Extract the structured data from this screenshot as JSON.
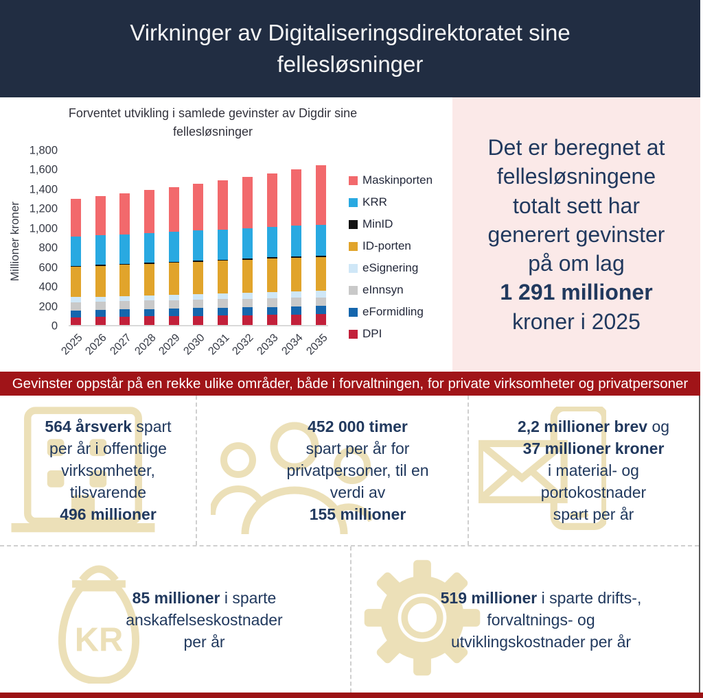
{
  "header": {
    "title": "Virkninger av Digitaliseringsdirektoratet sine\nfellesløsninger"
  },
  "colors": {
    "header_bg": "#212d42",
    "panel_bg": "#fbe9e8",
    "banner_red": "#a01418",
    "bottom_strip_red": "#9b1013",
    "icon_beige": "#ece0b8",
    "text_navy": "#21395e"
  },
  "chart_data": {
    "type": "bar",
    "stacked": true,
    "title": "Forventet utvikling i samlede gevinster av Digdir sine\nfellesløsninger",
    "xlabel": "",
    "ylabel": "Millioner kroner",
    "ylim": [
      0,
      1800
    ],
    "ytick_step": 200,
    "grid": false,
    "legend_position": "right",
    "categories": [
      "2025",
      "2026",
      "2027",
      "2028",
      "2029",
      "2030",
      "2031",
      "2032",
      "2033",
      "2034",
      "2035"
    ],
    "series": [
      {
        "name": "Maskinporten",
        "color": "#f2696c",
        "values": [
          384,
          402,
          422,
          440,
          461,
          481,
          504,
          525,
          550,
          579,
          610
        ]
      },
      {
        "name": "KRR",
        "color": "#29a9e1",
        "values": [
          300,
          302,
          303,
          305,
          306,
          308,
          309,
          311,
          312,
          314,
          316
        ]
      },
      {
        "name": "MinID",
        "color": "#111111",
        "values": [
          12,
          12,
          12,
          13,
          13,
          13,
          13,
          14,
          14,
          14,
          14
        ]
      },
      {
        "name": "ID-porten",
        "color": "#e1a42b",
        "values": [
          310,
          314,
          318,
          322,
          326,
          330,
          334,
          338,
          342,
          346,
          350
        ]
      },
      {
        "name": "eSignering",
        "color": "#cfe7f7",
        "values": [
          50,
          52,
          53,
          55,
          56,
          58,
          59,
          61,
          62,
          64,
          65
        ]
      },
      {
        "name": "eInnsyn",
        "color": "#c9c9c9",
        "values": [
          85,
          85,
          86,
          86,
          87,
          87,
          88,
          88,
          89,
          89,
          90
        ]
      },
      {
        "name": "eFormidling",
        "color": "#1566ad",
        "values": [
          70,
          72,
          73,
          75,
          76,
          78,
          79,
          81,
          82,
          84,
          85
        ]
      },
      {
        "name": "DPI",
        "color": "#c2203a",
        "values": [
          80,
          83,
          86,
          89,
          92,
          95,
          98,
          101,
          104,
          107,
          110
        ]
      }
    ],
    "totals": [
      1291,
      1322,
      1353,
      1385,
      1417,
      1450,
      1484,
      1519,
      1555,
      1597,
      1640
    ]
  },
  "panel": {
    "segments": [
      {
        "t": "Det er beregnet at\nfellesløsningene\ntotalt sett har\ngenerert gevinster\npå om lag\n",
        "b": 0
      },
      {
        "t": "1 291 millioner",
        "b": 1
      },
      {
        "t": "\nkroner i 2025",
        "b": 0
      }
    ]
  },
  "banner": {
    "text": "Gevinster oppstår på en rekke ulike områder, både i forvaltningen, for private virksomheter og privatpersoner"
  },
  "boxes": [
    {
      "icon": "building-icon",
      "segments": [
        {
          "t": "564 årsverk",
          "b": 1
        },
        {
          "t": " spart\nper år i offentlige\nvirksomheter,\ntilsvarende\n",
          "b": 0
        },
        {
          "t": "496 millioner",
          "b": 1
        }
      ]
    },
    {
      "icon": "people-icon",
      "segments": [
        {
          "t": "452 000 timer",
          "b": 1
        },
        {
          "t": "\nspart per år for\nprivatpersoner, til en\nverdi av\n",
          "b": 0
        },
        {
          "t": "155 millioner",
          "b": 1
        }
      ]
    },
    {
      "icon": "mail-phone-icon",
      "segments": [
        {
          "t": "2,2 millioner brev",
          "b": 1
        },
        {
          "t": " og\n",
          "b": 0
        },
        {
          "t": "37 millioner kroner",
          "b": 1
        },
        {
          "t": "\ni material- og\nportokostnader\nspart per år",
          "b": 0
        }
      ]
    },
    {
      "icon": "money-bag-icon",
      "segments": [
        {
          "t": "85 millioner",
          "b": 1
        },
        {
          "t": " i sparte\nanskaffelseskostnader\nper år",
          "b": 0
        }
      ]
    },
    {
      "icon": "gear-icon",
      "segments": [
        {
          "t": "519 millioner",
          "b": 1
        },
        {
          "t": " i sparte drifts-,\nforvaltnings- og\nutviklingskostnader per år",
          "b": 0
        }
      ]
    }
  ]
}
